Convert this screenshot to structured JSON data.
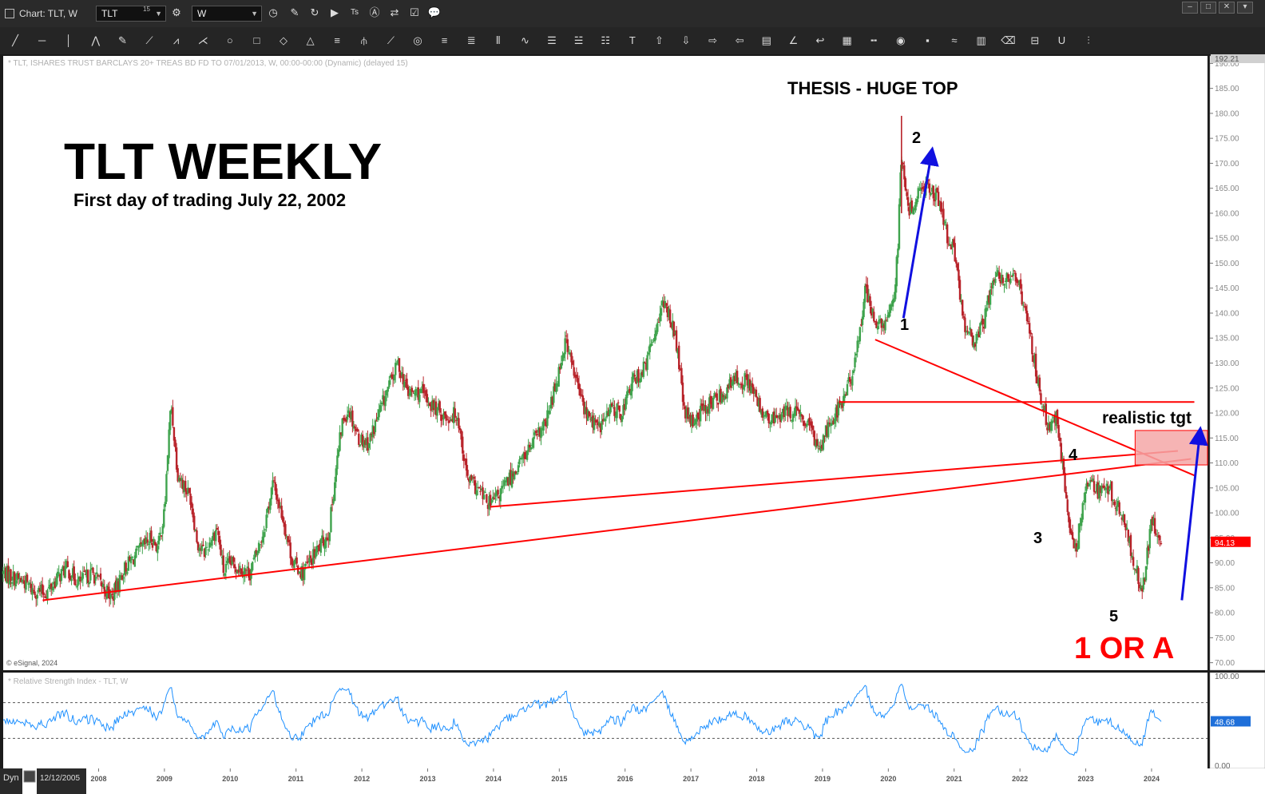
{
  "window": {
    "title": "Chart: TLT, W",
    "symbol": "TLT",
    "symbol_superscript": "15",
    "interval": "W",
    "btn_min": "–",
    "btn_restore": "□",
    "btn_close": "✕"
  },
  "toolbar_icons": [
    "line-tool-icon",
    "horizontal-line-icon",
    "vertical-line-icon",
    "polyline-icon",
    "pencil-icon",
    "fib-fan-icon",
    "fib-tool-icon",
    "gann-fan-icon",
    "ellipse-icon",
    "rectangle-icon",
    "diamond-icon",
    "triangle-icon",
    "channel-icon",
    "pitchfork-icon",
    "regression-icon",
    "circle-target-icon",
    "align-left-icon",
    "align-center-icon",
    "columns-icon",
    "wave-icon",
    "list-icon",
    "list-alt-icon",
    "list-more-icon",
    "text-tool-icon",
    "arrow-up-icon",
    "arrow-down-icon",
    "arrow-right-icon",
    "arrow-left-icon",
    "bars-icon",
    "angle-icon",
    "arrow-back-icon",
    "grid-icon",
    "ruler-icon",
    "eye-icon",
    "pti-icon",
    "cycle-icon",
    "table-icon",
    "eraser-icon",
    "comment-icon",
    "magnet-icon",
    "settings-sliders-icon"
  ],
  "colors": {
    "bg": "#ffffff",
    "up": "#3fa34d",
    "down": "#b8232a",
    "trend": "#ff0000",
    "arrow": "#1010e0",
    "rsi": "#1e90ff",
    "target_fill": "#f4a7a7",
    "price_tag": "#ff0000"
  },
  "header_text": "* TLT, ISHARES TRUST BARCLAYS 20+ TREAS BD FD TO 07/01/2013, W, 00:00-00:00 (Dynamic) (delayed 15)",
  "copyright": "© eSignal, 2024",
  "rsi_header": "* Relative Strength Index - TLT, W",
  "bottom": {
    "mode": "Dyn",
    "date": "12/12/2005"
  },
  "annotations": {
    "title": "TLT WEEKLY",
    "subtitle": "First day of trading July 22, 2002",
    "thesis": "THESIS - HUGE TOP",
    "realistic": "realistic tgt",
    "one_or_a": "1 OR A",
    "waves": [
      "1",
      "2",
      "3",
      "4",
      "5"
    ]
  },
  "chart_data": [
    {
      "type": "candlestick",
      "title": "TLT WEEKLY",
      "x_ticks": [
        "2008",
        "2009",
        "2010",
        "2011",
        "2012",
        "2013",
        "2014",
        "2015",
        "2016",
        "2017",
        "2018",
        "2019",
        "2020",
        "2021",
        "2022",
        "2023",
        "2024"
      ],
      "xlim": [
        2006.55,
        2024.85
      ],
      "y_ticks": [
        "190.00",
        "185.00",
        "180.00",
        "175.00",
        "170.00",
        "165.00",
        "160.00",
        "155.00",
        "150.00",
        "145.00",
        "140.00",
        "135.00",
        "130.00",
        "125.00",
        "120.00",
        "115.00",
        "110.00",
        "105.00",
        "100.00",
        "95.00",
        "90.00",
        "85.00",
        "80.00",
        "75.00",
        "70.00"
      ],
      "ylim": [
        68.5,
        191.5
      ],
      "price_axis_top": "192.21",
      "last_price": "94.13",
      "path": [
        [
          2006.55,
          88
        ],
        [
          2006.9,
          86
        ],
        [
          2007.0,
          84.5
        ],
        [
          2007.2,
          84
        ],
        [
          2007.5,
          89
        ],
        [
          2007.7,
          86
        ],
        [
          2007.9,
          88
        ],
        [
          2008.2,
          83
        ],
        [
          2008.4,
          89
        ],
        [
          2008.6,
          92
        ],
        [
          2008.8,
          95
        ],
        [
          2008.9,
          93
        ],
        [
          2009.0,
          100
        ],
        [
          2009.05,
          112
        ],
        [
          2009.1,
          122
        ],
        [
          2009.2,
          108
        ],
        [
          2009.4,
          103
        ],
        [
          2009.5,
          94
        ],
        [
          2009.6,
          92
        ],
        [
          2009.8,
          97
        ],
        [
          2009.9,
          88
        ],
        [
          2010.0,
          90
        ],
        [
          2010.3,
          88
        ],
        [
          2010.5,
          96
        ],
        [
          2010.65,
          106
        ],
        [
          2010.8,
          99
        ],
        [
          2010.95,
          90
        ],
        [
          2011.1,
          88
        ],
        [
          2011.3,
          92
        ],
        [
          2011.5,
          96
        ],
        [
          2011.6,
          108
        ],
        [
          2011.7,
          118
        ],
        [
          2011.8,
          121
        ],
        [
          2011.95,
          115
        ],
        [
          2012.1,
          114
        ],
        [
          2012.4,
          125
        ],
        [
          2012.55,
          130
        ],
        [
          2012.7,
          124
        ],
        [
          2012.9,
          124
        ],
        [
          2013.1,
          121
        ],
        [
          2013.3,
          119
        ],
        [
          2013.45,
          120
        ],
        [
          2013.6,
          107
        ],
        [
          2013.8,
          104
        ],
        [
          2013.95,
          101.5
        ],
        [
          2014.1,
          104
        ],
        [
          2014.4,
          110
        ],
        [
          2014.6,
          114
        ],
        [
          2014.8,
          118
        ],
        [
          2014.95,
          126
        ],
        [
          2015.1,
          135
        ],
        [
          2015.2,
          129
        ],
        [
          2015.4,
          120
        ],
        [
          2015.6,
          117
        ],
        [
          2015.8,
          121
        ],
        [
          2015.95,
          120
        ],
        [
          2016.1,
          126
        ],
        [
          2016.3,
          129
        ],
        [
          2016.45,
          136
        ],
        [
          2016.55,
          142
        ],
        [
          2016.7,
          139
        ],
        [
          2016.8,
          132
        ],
        [
          2016.9,
          120
        ],
        [
          2017.0,
          118
        ],
        [
          2017.2,
          121
        ],
        [
          2017.5,
          124
        ],
        [
          2017.7,
          127
        ],
        [
          2017.9,
          126
        ],
        [
          2018.0,
          122
        ],
        [
          2018.2,
          118
        ],
        [
          2018.4,
          120
        ],
        [
          2018.6,
          120
        ],
        [
          2018.8,
          117
        ],
        [
          2018.95,
          113
        ],
        [
          2019.1,
          118
        ],
        [
          2019.3,
          122
        ],
        [
          2019.5,
          130
        ],
        [
          2019.65,
          145
        ],
        [
          2019.8,
          138
        ],
        [
          2019.95,
          137
        ],
        [
          2020.1,
          145
        ],
        [
          2020.15,
          155
        ],
        [
          2020.2,
          172
        ],
        [
          2020.3,
          160
        ],
        [
          2020.45,
          164
        ],
        [
          2020.6,
          166
        ],
        [
          2020.75,
          163
        ],
        [
          2020.9,
          155
        ],
        [
          2021.0,
          152
        ],
        [
          2021.15,
          138
        ],
        [
          2021.3,
          134
        ],
        [
          2021.45,
          138
        ],
        [
          2021.6,
          148
        ],
        [
          2021.75,
          146
        ],
        [
          2021.9,
          149
        ],
        [
          2022.0,
          145
        ],
        [
          2022.15,
          136
        ],
        [
          2022.3,
          124
        ],
        [
          2022.45,
          116
        ],
        [
          2022.55,
          119
        ],
        [
          2022.65,
          110
        ],
        [
          2022.75,
          96
        ],
        [
          2022.85,
          92
        ],
        [
          2022.95,
          102
        ],
        [
          2023.05,
          107
        ],
        [
          2023.2,
          104
        ],
        [
          2023.35,
          105
        ],
        [
          2023.5,
          101
        ],
        [
          2023.6,
          97
        ],
        [
          2023.7,
          92
        ],
        [
          2023.8,
          87
        ],
        [
          2023.85,
          83
        ],
        [
          2023.95,
          93
        ],
        [
          2024.0,
          99
        ],
        [
          2024.1,
          94
        ],
        [
          2024.15,
          94.13
        ]
      ]
    },
    {
      "type": "line",
      "title": "Relative Strength Index - TLT, W",
      "y_ticks": [
        "100.00",
        "0.00"
      ],
      "ylim": [
        0,
        100
      ],
      "levels": [
        70,
        30
      ],
      "last_value": "48.68"
    }
  ]
}
